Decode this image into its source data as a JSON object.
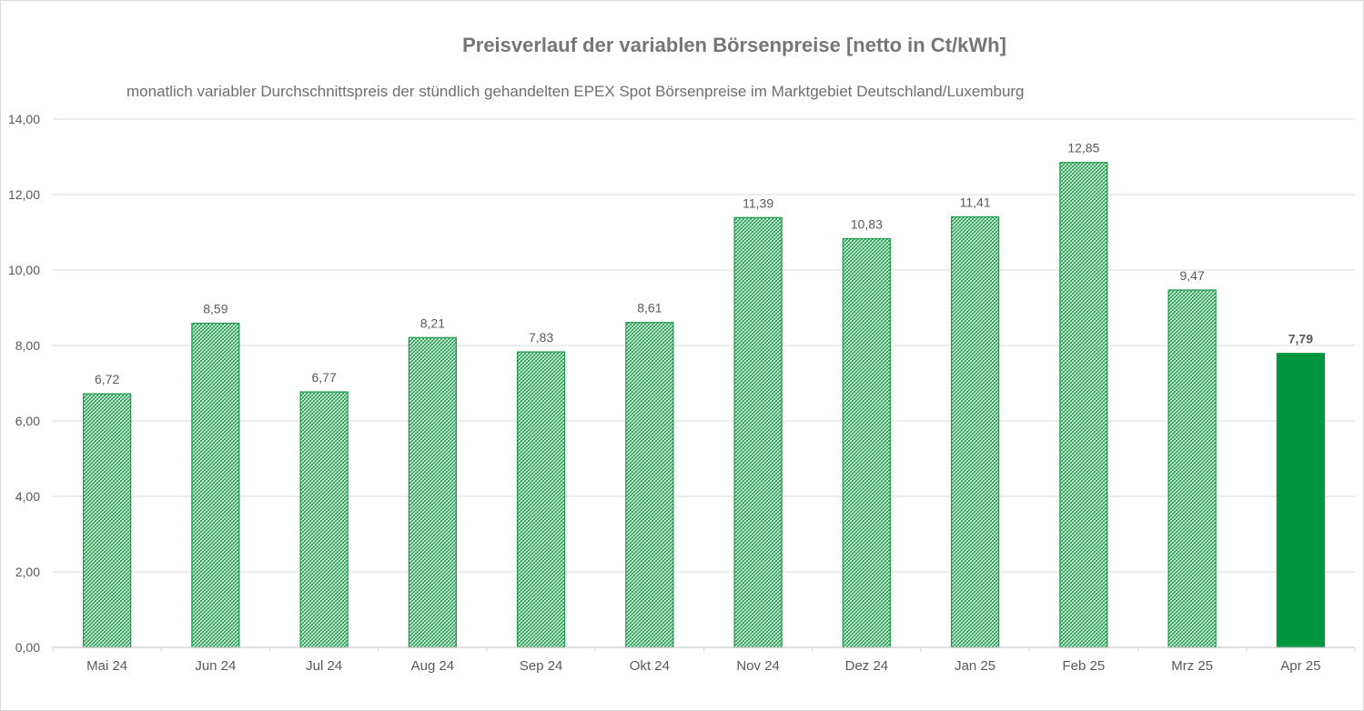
{
  "chart_data": {
    "type": "bar",
    "title": "Preisverlauf der variablen Börsenpreise [netto in Ct/kWh]",
    "subtitle": "monatlich variabler Durchschnittspreis der stündlich gehandelten EPEX Spot Börsenpreise im Marktgebiet Deutschland/Luxemburg",
    "categories": [
      "Mai 24",
      "Jun 24",
      "Jul 24",
      "Aug 24",
      "Sep 24",
      "Okt 24",
      "Nov 24",
      "Dez 24",
      "Jan 25",
      "Feb 25",
      "Mrz 25",
      "Apr 25"
    ],
    "values": [
      6.72,
      8.59,
      6.77,
      8.21,
      7.83,
      8.61,
      11.39,
      10.83,
      11.41,
      12.85,
      9.47,
      7.79
    ],
    "value_labels": [
      "6,72",
      "8,59",
      "6,77",
      "8,21",
      "7,83",
      "8,61",
      "11,39",
      "10,83",
      "11,41",
      "12,85",
      "9,47",
      "7,79"
    ],
    "highlight_index": 11,
    "y_ticks": [
      0,
      2,
      4,
      6,
      8,
      10,
      12,
      14
    ],
    "y_tick_labels": [
      "0,00",
      "2,00",
      "4,00",
      "6,00",
      "8,00",
      "10,00",
      "12,00",
      "14,00"
    ],
    "ylim": [
      0,
      14
    ],
    "xlabel": "",
    "ylabel": "",
    "grid": true,
    "colors": {
      "bar": "#1a9a4a",
      "bar_hatch_light": "#e3f3e8",
      "highlight": "#009640",
      "grid": "#d9d9d9",
      "text": "#595959"
    }
  }
}
